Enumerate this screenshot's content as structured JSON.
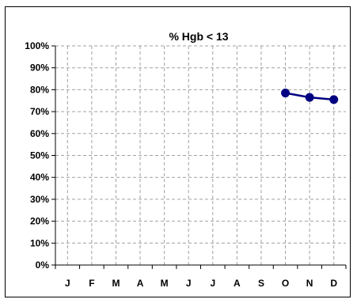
{
  "chart_data": {
    "type": "line",
    "title": "% Hgb < 13",
    "xlabel": "",
    "ylabel": "",
    "categories": [
      "J",
      "F",
      "M",
      "A",
      "M",
      "J",
      "J",
      "A",
      "S",
      "O",
      "N",
      "D"
    ],
    "y_tick_labels": [
      "0%",
      "10%",
      "20%",
      "30%",
      "40%",
      "50%",
      "60%",
      "70%",
      "80%",
      "90%",
      "100%"
    ],
    "ylim": [
      0,
      100
    ],
    "grid": true,
    "legend": "none",
    "series": [
      {
        "values": [
          null,
          null,
          null,
          null,
          null,
          null,
          null,
          null,
          null,
          78.5,
          76.5,
          75.5
        ],
        "color": "#000080"
      }
    ],
    "colors": {
      "series": "#000080",
      "grid": "#a0a0a0",
      "axis": "#000000"
    }
  }
}
